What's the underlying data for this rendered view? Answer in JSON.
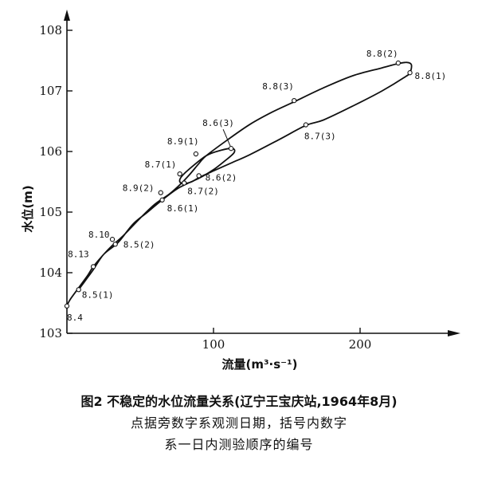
{
  "chart_data": {
    "type": "line",
    "xlabel": "流量(m³·s⁻¹)",
    "ylabel": "水位(m)",
    "xlim": [
      0,
      250
    ],
    "ylim": [
      103,
      108
    ],
    "x_ticks": [
      100,
      200
    ],
    "y_ticks": [
      103,
      104,
      105,
      106,
      107,
      108
    ],
    "grid": false,
    "series": [
      {
        "values": [
          {
            "x": 0,
            "y": 103.45
          },
          {
            "x": 2,
            "y": 103.55
          },
          {
            "x": 8,
            "y": 103.75
          },
          {
            "x": 14,
            "y": 103.95
          },
          {
            "x": 18,
            "y": 104.1
          },
          {
            "x": 25,
            "y": 104.3
          },
          {
            "x": 31,
            "y": 104.45
          },
          {
            "x": 38,
            "y": 104.6
          },
          {
            "x": 50,
            "y": 104.9
          },
          {
            "x": 60,
            "y": 105.13
          },
          {
            "x": 70,
            "y": 105.3
          },
          {
            "x": 77,
            "y": 105.45
          },
          {
            "x": 83,
            "y": 105.6
          },
          {
            "x": 90,
            "y": 105.8
          },
          {
            "x": 95,
            "y": 105.93
          },
          {
            "x": 110,
            "y": 106.2
          },
          {
            "x": 125,
            "y": 106.45
          },
          {
            "x": 140,
            "y": 106.65
          },
          {
            "x": 155,
            "y": 106.82
          },
          {
            "x": 175,
            "y": 107.05
          },
          {
            "x": 195,
            "y": 107.25
          },
          {
            "x": 215,
            "y": 107.38
          },
          {
            "x": 226,
            "y": 107.45
          },
          {
            "x": 232,
            "y": 107.47
          },
          {
            "x": 235,
            "y": 107.43
          },
          {
            "x": 234,
            "y": 107.3
          },
          {
            "x": 230,
            "y": 107.22
          },
          {
            "x": 215,
            "y": 107.0
          },
          {
            "x": 195,
            "y": 106.75
          },
          {
            "x": 175,
            "y": 106.52
          },
          {
            "x": 163,
            "y": 106.43
          },
          {
            "x": 145,
            "y": 106.2
          },
          {
            "x": 125,
            "y": 105.95
          },
          {
            "x": 113,
            "y": 105.82
          },
          {
            "x": 100,
            "y": 105.68
          },
          {
            "x": 91,
            "y": 105.58
          },
          {
            "x": 85,
            "y": 105.5
          },
          {
            "x": 80,
            "y": 105.47
          },
          {
            "x": 77,
            "y": 105.5
          },
          {
            "x": 78,
            "y": 105.58
          },
          {
            "x": 83,
            "y": 105.7
          },
          {
            "x": 95,
            "y": 105.93
          },
          {
            "x": 105,
            "y": 106.02
          },
          {
            "x": 113,
            "y": 106.05
          },
          {
            "x": 114,
            "y": 105.98
          },
          {
            "x": 108,
            "y": 105.85
          },
          {
            "x": 100,
            "y": 105.7
          },
          {
            "x": 91,
            "y": 105.57
          },
          {
            "x": 83,
            "y": 105.48
          },
          {
            "x": 75,
            "y": 105.38
          },
          {
            "x": 65,
            "y": 105.2
          },
          {
            "x": 55,
            "y": 105.0
          },
          {
            "x": 45,
            "y": 104.8
          },
          {
            "x": 35,
            "y": 104.5
          },
          {
            "x": 25,
            "y": 104.3
          },
          {
            "x": 18,
            "y": 104.05
          },
          {
            "x": 12,
            "y": 103.85
          },
          {
            "x": 8,
            "y": 103.72
          }
        ]
      }
    ],
    "points": [
      {
        "label": "8.4",
        "x": 0,
        "y": 103.45
      },
      {
        "label": "8.5(1)",
        "x": 8,
        "y": 103.72
      },
      {
        "label": "8.13",
        "x": 18,
        "y": 104.1
      },
      {
        "label": "8.5(2)",
        "x": 33,
        "y": 104.47
      },
      {
        "label": "8.10",
        "x": 31,
        "y": 104.55
      },
      {
        "label": "8.6(1)",
        "x": 65,
        "y": 105.2
      },
      {
        "label": "8.9(2)",
        "x": 64,
        "y": 105.32
      },
      {
        "label": "8.7(2)",
        "x": 80,
        "y": 105.48
      },
      {
        "label": "8.7(1)",
        "x": 77,
        "y": 105.63
      },
      {
        "label": "8.6(2)",
        "x": 90,
        "y": 105.6
      },
      {
        "label": "8.9(1)",
        "x": 88,
        "y": 105.96
      },
      {
        "label": "8.6(3)",
        "x": 112,
        "y": 106.05
      },
      {
        "label": "8.8(3)",
        "x": 155,
        "y": 106.84
      },
      {
        "label": "8.7(3)",
        "x": 163,
        "y": 106.44
      },
      {
        "label": "8.8(2)",
        "x": 226,
        "y": 107.46
      },
      {
        "label": "8.8(1)",
        "x": 234,
        "y": 107.3
      }
    ]
  },
  "caption": {
    "line1": "图2  不稳定的水位流量关系(辽宁王宝庆站,1964年8月)",
    "line2": "点据旁数字系观测日期，括号内数字",
    "line3": "系一日内测验顺序的编号"
  }
}
